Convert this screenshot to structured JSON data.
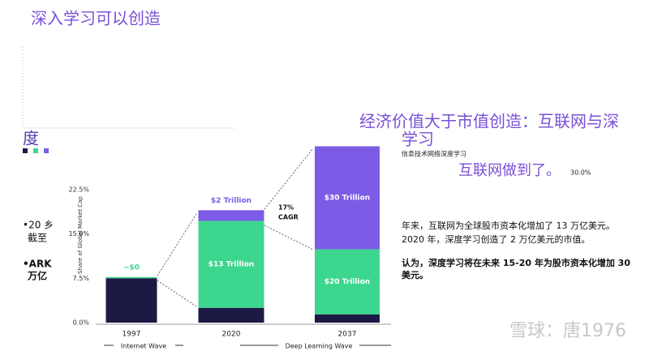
{
  "title": "深入学习可以创造",
  "title_cont": "度",
  "bullets": [
    "•20 乡",
    "截至",
    "•ARK",
    "万亿"
  ],
  "heading": [
    "经济价值大于市值创造：互联网与深",
    "学习"
  ],
  "subheading": "信息技术网络深度学习",
  "highlight": "互联网做到了。",
  "stray_label": "30.0%",
  "paragraphs": [
    "年来，互联网为全球股市资本化增加了 13 万亿美元。",
    "2020 年，深度学习创造了 2 万亿美元的市值。",
    "认为，深度学习将在未来 15-20 年为股市资本化增加 30",
    "美元。"
  ],
  "watermark": "雪球：唐1976",
  "chart_data": {
    "type": "stacked_bar",
    "ylabel": "Share of Global Market Cap",
    "categories": [
      "1997",
      "2020",
      "2037"
    ],
    "ylim": [
      0,
      30
    ],
    "yticks": [
      {
        "value": 0,
        "label": "0.0%"
      },
      {
        "value": 7.5,
        "label": "7.5%"
      },
      {
        "value": 15,
        "label": "15.0%"
      },
      {
        "value": 22.5,
        "label": "22.5%"
      }
    ],
    "series": [
      {
        "color": "#1c1a45",
        "values": [
          7.5,
          2.5,
          1.4
        ]
      },
      {
        "color": "#3dd68f",
        "values": [
          0.2,
          14.7,
          11.0
        ],
        "labels": [
          "~$0",
          "$13 Trillion",
          "$20 Trillion"
        ]
      },
      {
        "color": "#7c5ce6",
        "values": [
          null,
          1.8,
          17.4
        ],
        "labels": [
          null,
          "$2 Trillion",
          "$30 Trillion"
        ]
      }
    ],
    "annotation": [
      "17%",
      "CAGR"
    ],
    "waves": [
      "Internet Wave",
      "Deep Learning Wave"
    ]
  }
}
